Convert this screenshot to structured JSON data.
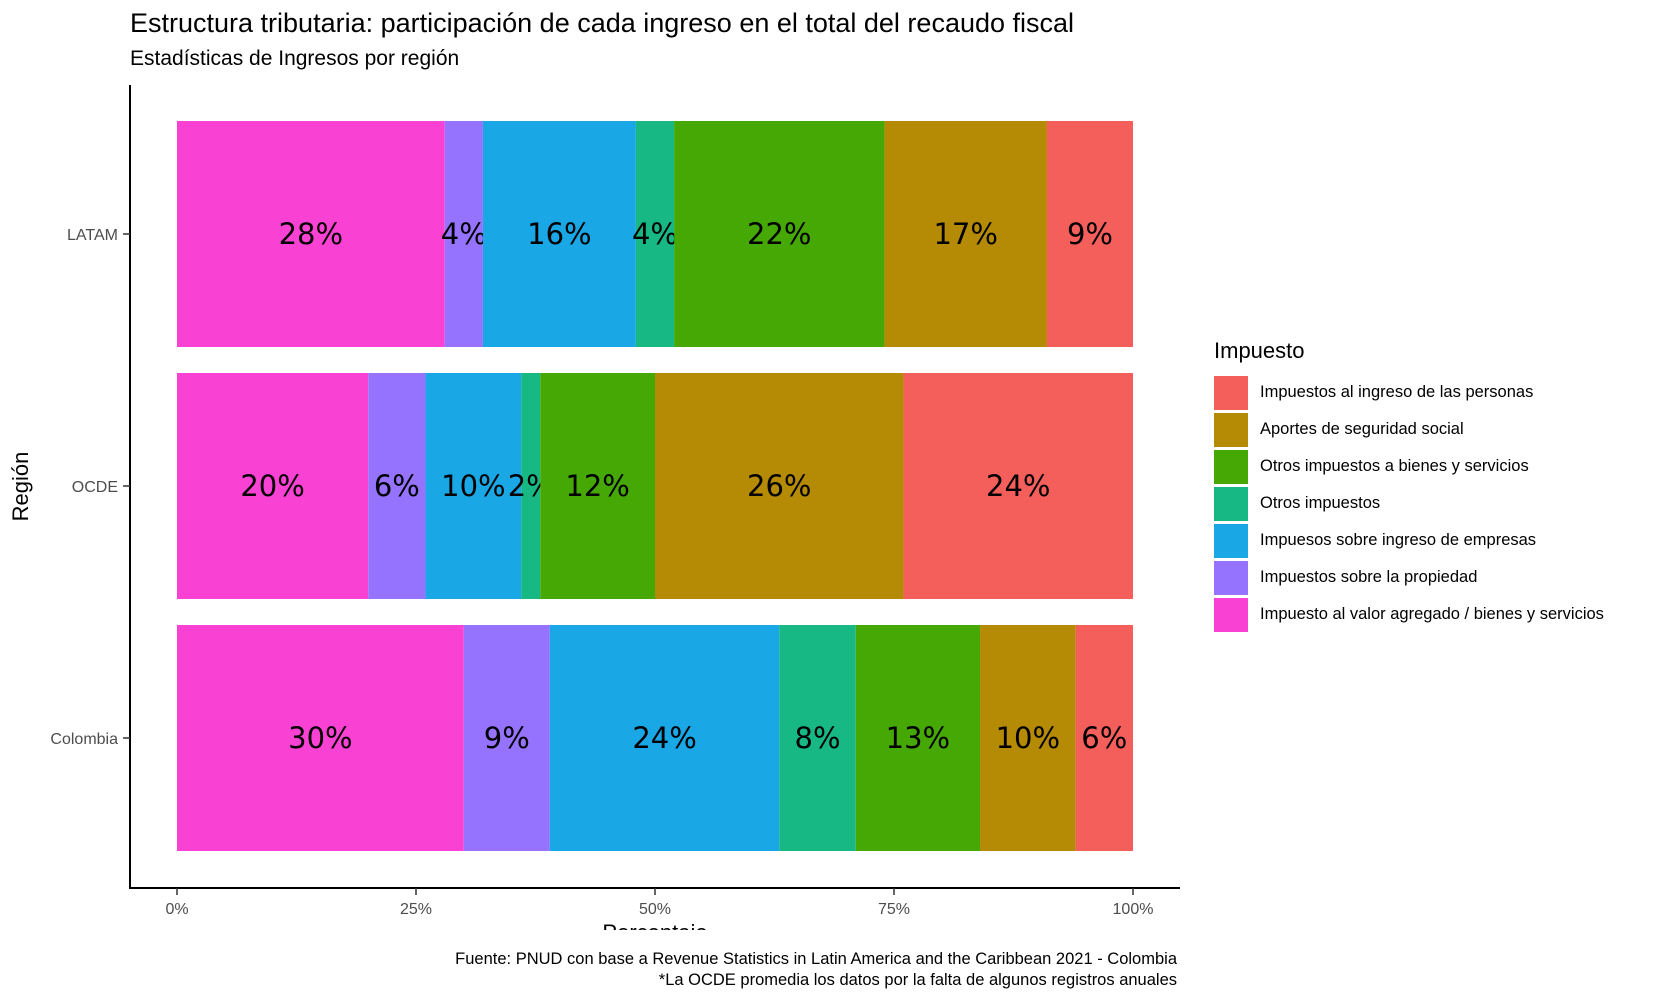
{
  "chart_data": {
    "type": "bar",
    "orientation": "horizontal",
    "stacked": true,
    "title": "Estructura tributaria: participación de cada ingreso en el total del recaudo fiscal",
    "subtitle": "Estadísticas de Ingresos por región",
    "xlabel": "Porcentaje",
    "ylabel": "Región",
    "xlim": [
      0,
      1
    ],
    "x_ticks": [
      "0%",
      "25%",
      "50%",
      "75%",
      "100%"
    ],
    "categories": [
      "LATAM",
      "OCDE",
      "Colombia"
    ],
    "legend_title": "Impuesto",
    "legend_position": "right",
    "grid": false,
    "series": [
      {
        "name": "Impuesto al valor agregado / bienes y servicios",
        "color": "#F942D4",
        "values": [
          0.28,
          0.2,
          0.3
        ],
        "labels": [
          "28%",
          "20%",
          "30%"
        ]
      },
      {
        "name": "Impuestos sobre la propiedad",
        "color": "#9673FF",
        "values": [
          0.04,
          0.06,
          0.09
        ],
        "labels": [
          "4%",
          "6%",
          "9%"
        ]
      },
      {
        "name": "Impuesos  sobre ingreso de empresas",
        "color": "#19A7E6",
        "values": [
          0.16,
          0.1,
          0.24
        ],
        "labels": [
          "16%",
          "10%",
          "24%"
        ]
      },
      {
        "name": "Otros impuestos",
        "color": "#18B885",
        "values": [
          0.04,
          0.02,
          0.08
        ],
        "labels": [
          "4%",
          "2%",
          "8%"
        ]
      },
      {
        "name": "Otros impuestos  a bienes y servicios",
        "color": "#45A805",
        "values": [
          0.22,
          0.12,
          0.13
        ],
        "labels": [
          "22%",
          "12%",
          "13%"
        ]
      },
      {
        "name": "Aportes de seguridad social",
        "color": "#B58A04",
        "values": [
          0.17,
          0.26,
          0.1
        ],
        "labels": [
          "17%",
          "26%",
          "10%"
        ]
      },
      {
        "name": "Impuestos al ingreso de las personas",
        "color": "#F45F5C",
        "values": [
          0.09,
          0.24,
          0.06
        ],
        "labels": [
          "9%",
          "24%",
          "6%"
        ]
      }
    ],
    "legend_order": [
      6,
      5,
      4,
      3,
      2,
      1,
      0
    ],
    "caption": [
      "Fuente: PNUD con base a Revenue Statistics in Latin America and the Caribbean 2021 - Colombia",
      "*La OCDE  promedia los  datos por la falta de algunos registros anuales"
    ]
  }
}
